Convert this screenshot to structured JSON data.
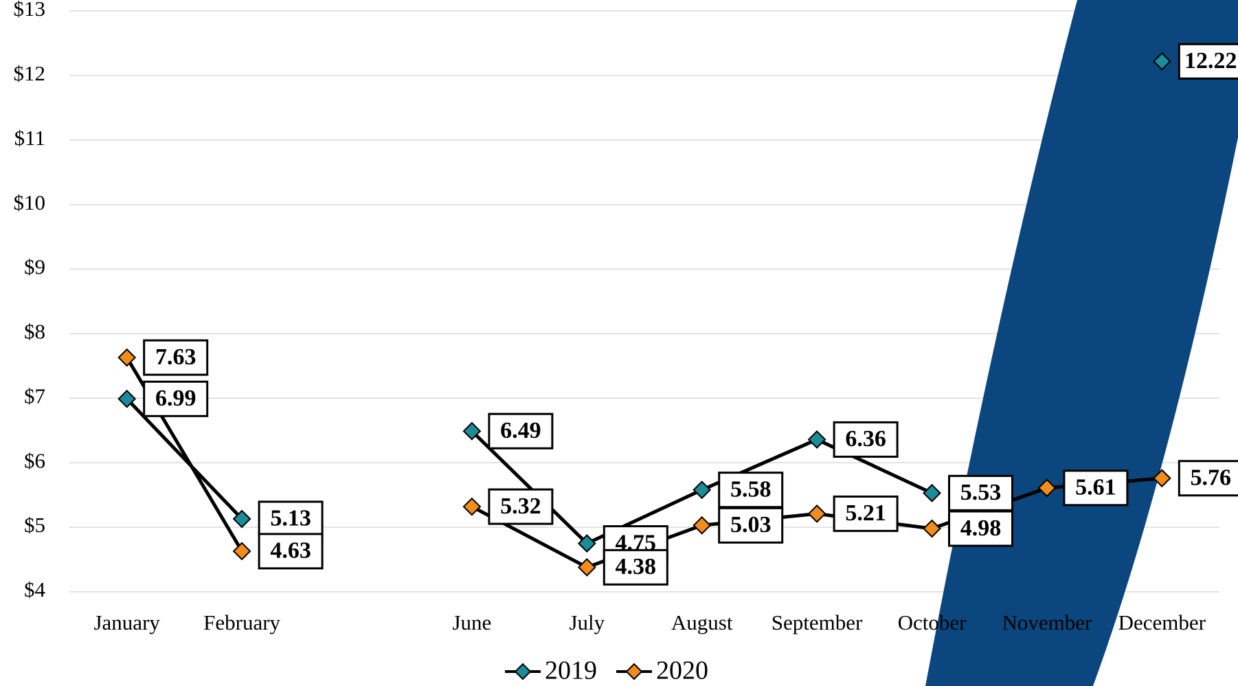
{
  "chart_data": {
    "type": "line",
    "categories": [
      "January",
      "February",
      null,
      "June",
      "July",
      "August",
      "September",
      "October",
      "November",
      "December"
    ],
    "series": [
      {
        "name": "2019",
        "color": "#1b8c98",
        "values": [
          6.99,
          5.13,
          null,
          6.49,
          4.75,
          5.58,
          6.36,
          5.53,
          null,
          12.22
        ]
      },
      {
        "name": "2020",
        "color": "#f28c1c",
        "values": [
          7.63,
          4.63,
          null,
          5.32,
          4.38,
          5.03,
          5.21,
          4.98,
          5.61,
          5.76
        ]
      }
    ],
    "ylim": [
      4,
      13
    ],
    "yticks": [
      {
        "value": 4,
        "label": "$4"
      },
      {
        "value": 5,
        "label": "$5"
      },
      {
        "value": 6,
        "label": "$6"
      },
      {
        "value": 7,
        "label": "$7"
      },
      {
        "value": 8,
        "label": "$8"
      },
      {
        "value": 9,
        "label": "$9"
      },
      {
        "value": 10,
        "label": "$10"
      },
      {
        "value": 11,
        "label": "$11"
      },
      {
        "value": 12,
        "label": "$12"
      },
      {
        "value": 13,
        "label": "$13"
      }
    ],
    "grid": true,
    "legend": "bottom"
  }
}
